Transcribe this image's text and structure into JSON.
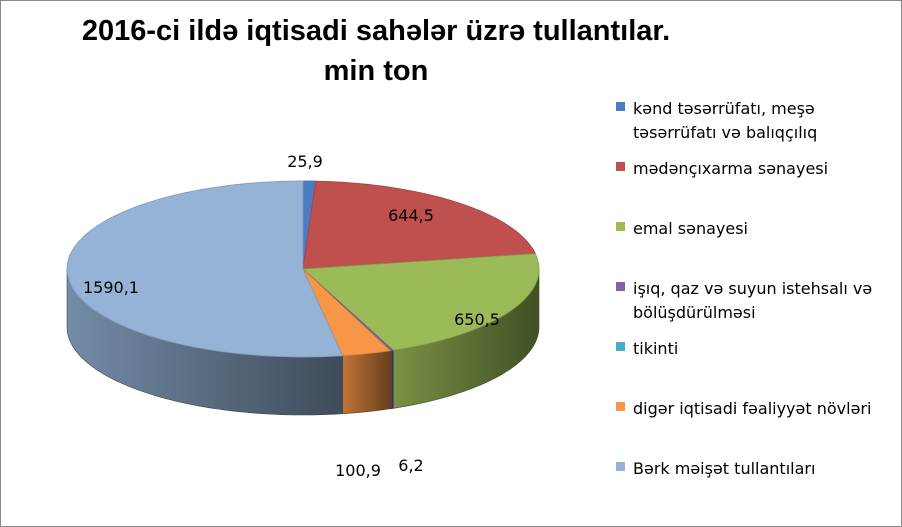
{
  "chart_data": {
    "type": "pie",
    "title_line1": "2016-ci ildə iqtisadi sahələr üzrə tullantılar.",
    "title_line2": "min ton",
    "slices": [
      {
        "name": "kənd təsərrüfatı, meşə təsərrüfatı və balıqçılıq",
        "value": 25.9,
        "label": "25,9",
        "color": "#4a7dc0"
      },
      {
        "name": "mədənçıxarma sənayesi",
        "value": 644.5,
        "label": "644,5",
        "color": "#c0504d"
      },
      {
        "name": "emal sənayesi",
        "value": 650.5,
        "label": "650,5",
        "color": "#9bbb59"
      },
      {
        "name": "işıq, qaz və suyun istehsalı və bölüşdürülməsi",
        "value": 6.2,
        "label": "6,2",
        "color": "#8064a2"
      },
      {
        "name": "tikinti",
        "value": 0,
        "label": "",
        "color": "#4bacc6"
      },
      {
        "name": "digər iqtisadi fəaliyyət növləri",
        "value": 100.9,
        "label": "100,9",
        "color": "#f79646"
      },
      {
        "name": "Bərk məişət tullantıları",
        "value": 1590.1,
        "label": "1590,1",
        "color": "#95b3d7"
      }
    ],
    "legend": [
      {
        "line1": "kənd təsərrüfatı, meşə",
        "line2": "təsərrüfatı və balıqçılıq",
        "color": "#4a7dc0"
      },
      {
        "line1": "mədənçıxarma sənayesi",
        "line2": "",
        "color": "#c0504d"
      },
      {
        "line1": "emal sənayesi",
        "line2": "",
        "color": "#9bbb59"
      },
      {
        "line1": "işıq, qaz və suyun istehsalı və",
        "line2": "bölüşdürülməsi",
        "color": "#8064a2"
      },
      {
        "line1": "tikinti",
        "line2": "",
        "color": "#4bacc6"
      },
      {
        "line1": "digər iqtisadi fəaliyyət növləri",
        "line2": "",
        "color": "#f79646"
      },
      {
        "line1": "Bərk məişət tullantıları",
        "line2": "",
        "color": "#95b3d7"
      }
    ],
    "legend_position": "right",
    "style": "3d-pie"
  }
}
